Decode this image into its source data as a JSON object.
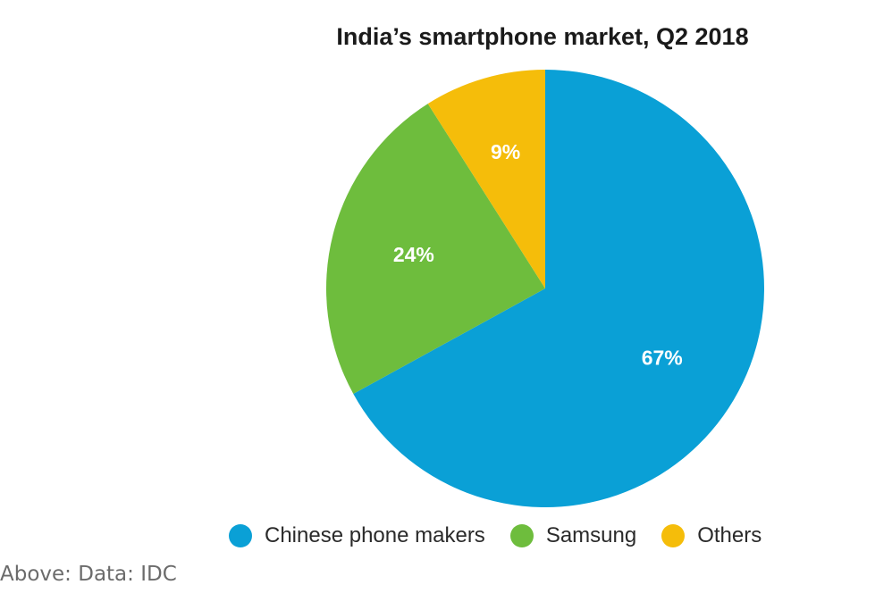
{
  "chart_data": {
    "type": "pie",
    "title": "India’s smartphone market, Q2 2018",
    "categories": [
      "Chinese phone makers",
      "Samsung",
      "Others"
    ],
    "values": [
      67,
      24,
      9
    ],
    "value_labels": [
      "67%",
      "24%",
      "9%"
    ],
    "colors": [
      "#0aa0d6",
      "#6ebd3d",
      "#f5bd0a"
    ],
    "start_angle_deg": 0,
    "direction": "clockwise",
    "legend_position": "bottom"
  },
  "caption": "Above: Data: IDC"
}
